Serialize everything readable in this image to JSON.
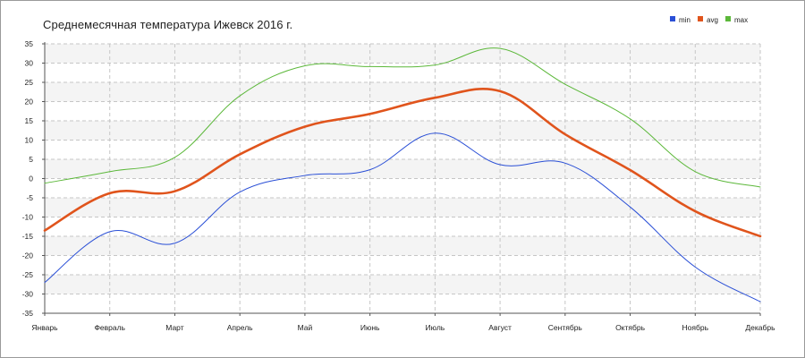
{
  "chart_data": {
    "type": "line",
    "title": "Среднемесячная температура Ижевск  2016 г.",
    "xlabel": "",
    "ylabel": "",
    "categories": [
      "Январь",
      "Февраль",
      "Март",
      "Апрель",
      "Май",
      "Июнь",
      "Июль",
      "Август",
      "Сентябрь",
      "Октябрь",
      "Ноябрь",
      "Декабрь"
    ],
    "yticks": [
      35,
      30,
      25,
      20,
      15,
      10,
      5,
      0,
      -5,
      -10,
      -15,
      -20,
      -25,
      -30,
      -35
    ],
    "ylim": [
      -35,
      35
    ],
    "grid": true,
    "legend_position": "top-right",
    "series": [
      {
        "name": "min",
        "color": "#2a4fd6",
        "width": 1,
        "values": [
          -27,
          -13.8,
          -16.8,
          -3.5,
          0.8,
          2.3,
          11.8,
          3.6,
          4,
          -7.4,
          -23,
          -32
        ]
      },
      {
        "name": "avg",
        "color": "#e0541c",
        "width": 2.6,
        "values": [
          -13.5,
          -3.8,
          -3.3,
          6.3,
          13.5,
          16.8,
          21,
          22.7,
          11.5,
          2.2,
          -8.5,
          -15
        ]
      },
      {
        "name": "max",
        "color": "#5cb83a",
        "width": 1,
        "values": [
          -1.2,
          1.8,
          5.5,
          21.5,
          29.3,
          29.1,
          29.5,
          33.8,
          24.5,
          15.5,
          1.8,
          -2.2
        ]
      }
    ]
  }
}
